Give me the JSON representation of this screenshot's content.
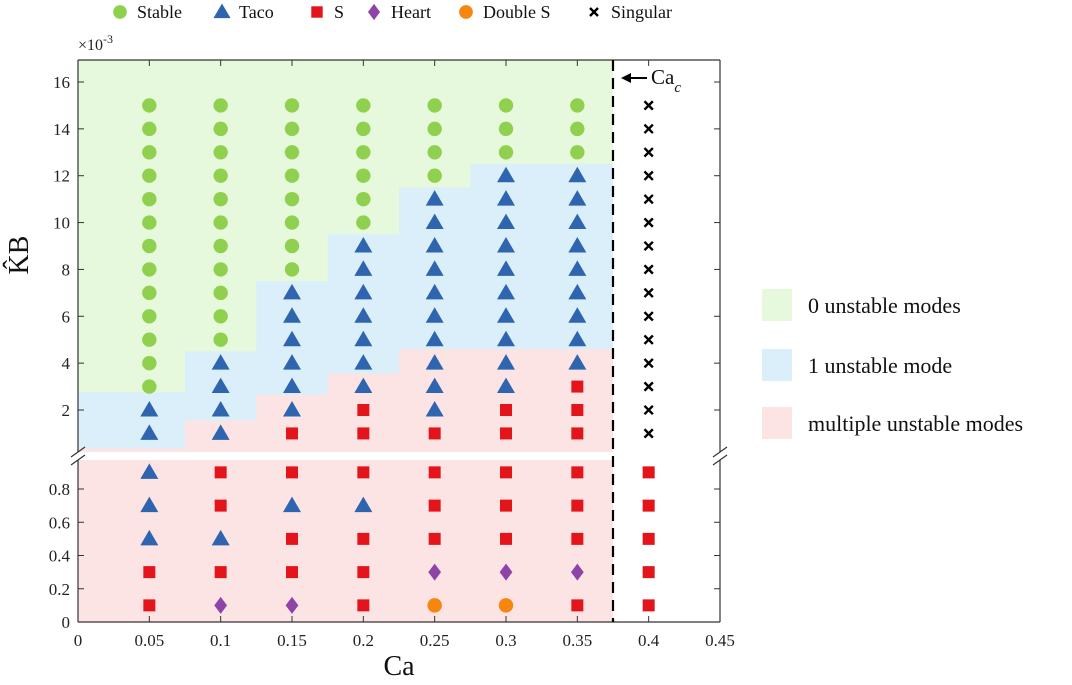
{
  "chart_data": {
    "type": "scatter",
    "xlabel": "Ca",
    "ylabel": "K̂B",
    "xlim": [
      0,
      0.45
    ],
    "x_ticks": [
      "0",
      "0.05",
      "0.1",
      "0.15",
      "0.2",
      "0.25",
      "0.3",
      "0.35",
      "0.4",
      "0.45"
    ],
    "upper_panel": {
      "ylim": [
        0,
        0.017
      ],
      "y_ticks": [
        "2",
        "4",
        "6",
        "8",
        "10",
        "12",
        "14",
        "16"
      ],
      "y_multiplier": "×10",
      "y_multiplier_exp": "-3"
    },
    "lower_panel": {
      "ylim": [
        0,
        1.0
      ],
      "y_ticks": [
        "0",
        "0.2",
        "0.4",
        "0.6",
        "0.8"
      ]
    },
    "critical_line": {
      "x": 0.375,
      "label": "Ca",
      "label_sub": "c"
    },
    "legend": [
      {
        "name": "Stable",
        "marker": "circle",
        "color": "#8fd14f"
      },
      {
        "name": "Taco",
        "marker": "triangle",
        "color": "#2f64ae"
      },
      {
        "name": "S",
        "marker": "square",
        "color": "#e4141b"
      },
      {
        "name": "Heart",
        "marker": "diamond",
        "color": "#8e44a7"
      },
      {
        "name": "Double S",
        "marker": "circle",
        "color": "#f7860e"
      },
      {
        "name": "Singular",
        "marker": "cross",
        "color": "#000000"
      }
    ],
    "regions": [
      {
        "name": "0 unstable modes",
        "color": "#e6f9dc"
      },
      {
        "name": "1 unstable mode",
        "color": "#dbeffa"
      },
      {
        "name": "multiple unstable modes",
        "color": "#fbe4e3"
      }
    ],
    "region_boundaries_upper": {
      "note_units": "Ca, K̂B (×10^-3)",
      "zero_one": [
        [
          0.025,
          2.75
        ],
        [
          0.075,
          4.5
        ],
        [
          0.125,
          7.5
        ],
        [
          0.175,
          9.5
        ],
        [
          0.225,
          11.5
        ],
        [
          0.275,
          12.5
        ],
        [
          0.375,
          12.5
        ]
      ],
      "one_multi": [
        [
          0.025,
          0.35
        ],
        [
          0.075,
          1.55
        ],
        [
          0.125,
          2.65
        ],
        [
          0.175,
          3.55
        ],
        [
          0.225,
          4.6
        ],
        [
          0.375,
          4.6
        ]
      ]
    },
    "upper_points": {
      "Ca": [
        0.05,
        0.1,
        0.15,
        0.2,
        0.25,
        0.3,
        0.35
      ],
      "K_B_e3": [
        1,
        2,
        3,
        4,
        5,
        6,
        7,
        8,
        9,
        10,
        11,
        12,
        13,
        14,
        15
      ],
      "types": [
        [
          "Taco",
          "Taco",
          "Stable",
          "Stable",
          "Stable",
          "Stable",
          "Stable",
          "Stable",
          "Stable",
          "Stable",
          "Stable",
          "Stable",
          "Stable",
          "Stable",
          "Stable"
        ],
        [
          "Taco",
          "Taco",
          "Taco",
          "Taco",
          "Stable",
          "Stable",
          "Stable",
          "Stable",
          "Stable",
          "Stable",
          "Stable",
          "Stable",
          "Stable",
          "Stable",
          "Stable"
        ],
        [
          "S",
          "Taco",
          "Taco",
          "Taco",
          "Taco",
          "Taco",
          "Taco",
          "Stable",
          "Stable",
          "Stable",
          "Stable",
          "Stable",
          "Stable",
          "Stable",
          "Stable"
        ],
        [
          "S",
          "S",
          "Taco",
          "Taco",
          "Taco",
          "Taco",
          "Taco",
          "Taco",
          "Taco",
          "Stable",
          "Stable",
          "Stable",
          "Stable",
          "Stable",
          "Stable"
        ],
        [
          "S",
          "Taco",
          "Taco",
          "Taco",
          "Taco",
          "Taco",
          "Taco",
          "Taco",
          "Taco",
          "Taco",
          "Taco",
          "Stable",
          "Stable",
          "Stable",
          "Stable"
        ],
        [
          "S",
          "S",
          "Taco",
          "Taco",
          "Taco",
          "Taco",
          "Taco",
          "Taco",
          "Taco",
          "Taco",
          "Taco",
          "Taco",
          "Stable",
          "Stable",
          "Stable"
        ],
        [
          "S",
          "S",
          "S",
          "Taco",
          "Taco",
          "Taco",
          "Taco",
          "Taco",
          "Taco",
          "Taco",
          "Taco",
          "Taco",
          "Stable",
          "Stable",
          "Stable"
        ]
      ]
    },
    "lower_points": {
      "Ca": [
        0.05,
        0.1,
        0.15,
        0.2,
        0.25,
        0.3,
        0.35
      ],
      "K_B": [
        0.1,
        0.3,
        0.5,
        0.7,
        0.9
      ],
      "types": [
        [
          "S",
          "S",
          "Taco",
          "Taco",
          "Taco"
        ],
        [
          "Heart",
          "S",
          "Taco",
          "S",
          "S"
        ],
        [
          "Heart",
          "S",
          "S",
          "Taco",
          "S"
        ],
        [
          "S",
          "S",
          "S",
          "Taco",
          "S"
        ],
        [
          "Double S",
          "Heart",
          "S",
          "S",
          "S"
        ],
        [
          "Double S",
          "Heart",
          "S",
          "S",
          "S"
        ],
        [
          "S",
          "Heart",
          "S",
          "S",
          "S"
        ]
      ]
    },
    "singular_points": {
      "Ca": 0.4,
      "upper_K_B_e3": [
        1,
        2,
        3,
        4,
        5,
        6,
        7,
        8,
        9,
        10,
        11,
        12,
        13,
        14,
        15
      ],
      "lower_K_B": [
        0.1,
        0.3,
        0.5,
        0.7,
        0.9
      ],
      "lower_type": "S"
    }
  }
}
